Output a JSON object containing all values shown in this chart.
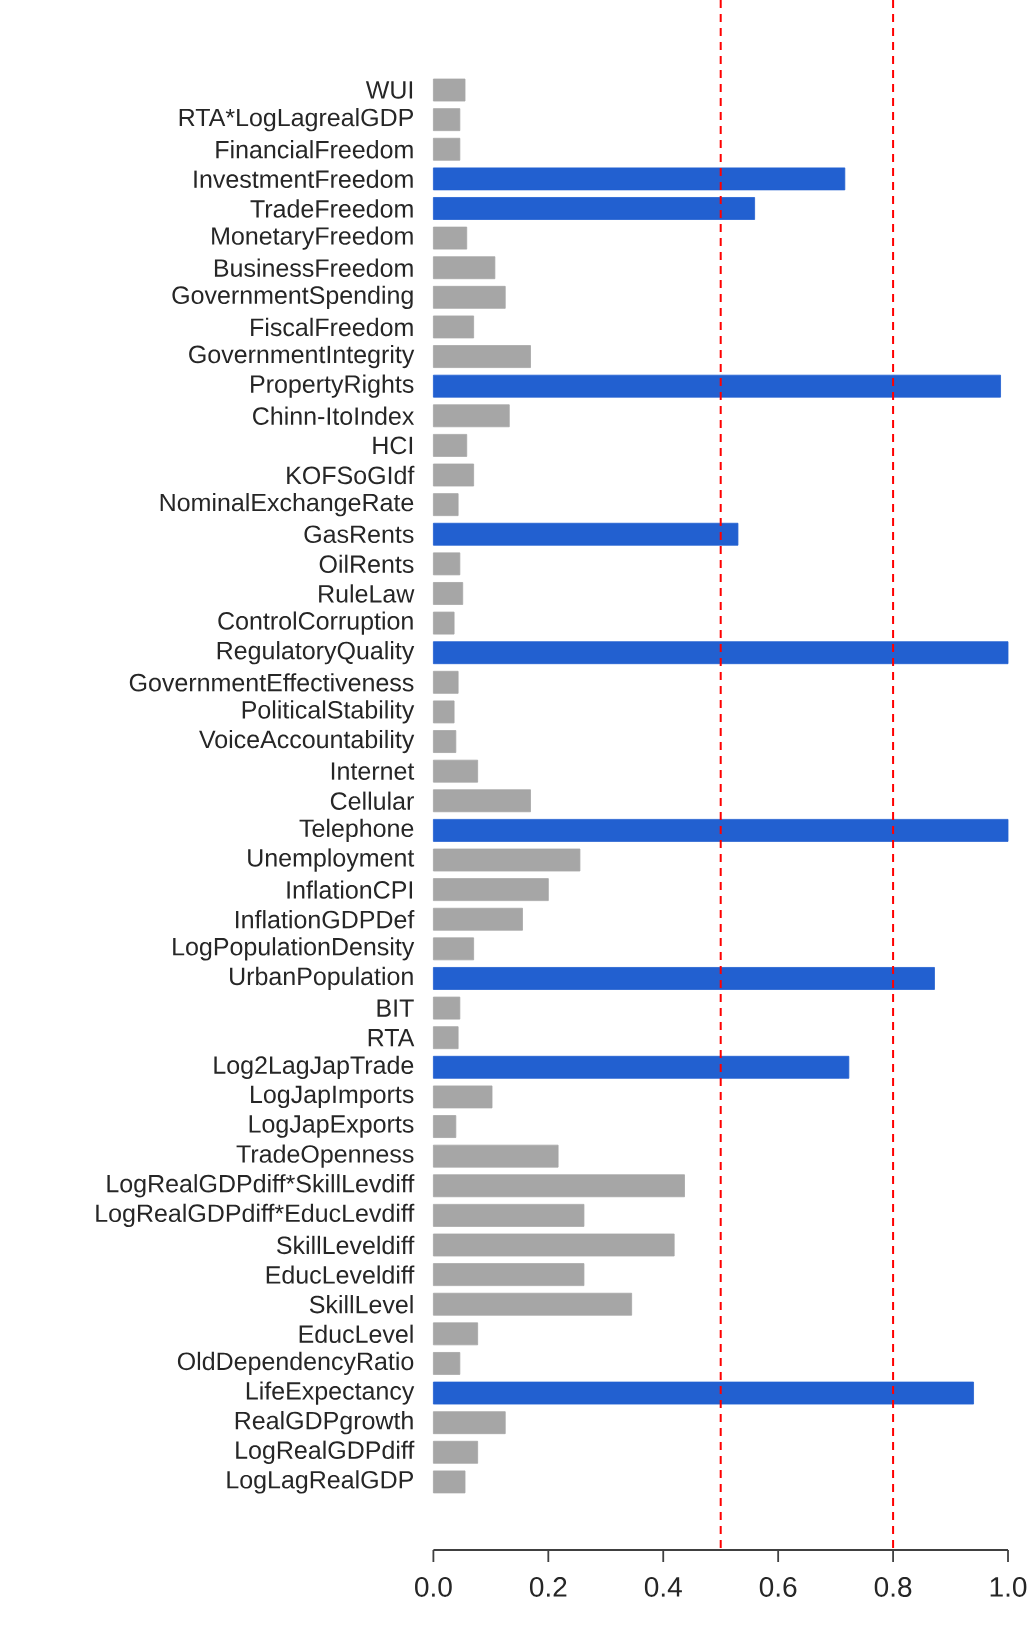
{
  "chart_data": {
    "type": "bar",
    "orientation": "horizontal",
    "categories": [
      "WUI",
      "RTA*LogLagrealGDP",
      "FinancialFreedom",
      "InvestmentFreedom",
      "TradeFreedom",
      "MonetaryFreedom",
      "BusinessFreedom",
      "GovernmentSpending",
      "FiscalFreedom",
      "GovernmentIntegrity",
      "PropertyRights",
      "Chinn-ItoIndex",
      "HCI",
      "KOFSoGIdf",
      "NominalExchangeRate",
      "GasRents",
      "OilRents",
      "RuleLaw",
      "ControlCorruption",
      "RegulatoryQuality",
      "GovernmentEffectiveness",
      "PoliticalStability",
      "VoiceAccountability",
      "Internet",
      "Cellular",
      "Telephone",
      "Unemployment",
      "InflationCPI",
      "InflationGDPDef",
      "LogPopulationDensity",
      "UrbanPopulation",
      "BIT",
      "RTA",
      "Log2LagJapTrade",
      "LogJapImports",
      "LogJapExports",
      "TradeOpenness",
      "LogRealGDPdiff*SkillLevdiff",
      "LogRealGDPdiff*EducLevdiff",
      "SkillLeveldiff",
      "EducLeveldiff",
      "SkillLevel",
      "EducLevel",
      "OldDependencyRatio",
      "LifeExpectancy",
      "RealGDPgrowth",
      "LogRealGDPdiff",
      "LogLagRealGDP"
    ],
    "values": [
      0.055,
      0.046,
      0.046,
      0.716,
      0.559,
      0.058,
      0.107,
      0.125,
      0.07,
      0.169,
      0.987,
      0.132,
      0.058,
      0.07,
      0.043,
      0.53,
      0.046,
      0.051,
      0.036,
      1.0,
      0.043,
      0.036,
      0.039,
      0.077,
      0.169,
      1.0,
      0.255,
      0.2,
      0.155,
      0.07,
      0.872,
      0.046,
      0.043,
      0.723,
      0.102,
      0.039,
      0.217,
      0.437,
      0.262,
      0.419,
      0.262,
      0.345,
      0.077,
      0.046,
      0.94,
      0.125,
      0.077,
      0.055
    ],
    "colors": [
      "#a6a6a6",
      "#a6a6a6",
      "#a6a6a6",
      "#2260d0",
      "#2260d0",
      "#a6a6a6",
      "#a6a6a6",
      "#a6a6a6",
      "#a6a6a6",
      "#a6a6a6",
      "#2260d0",
      "#a6a6a6",
      "#a6a6a6",
      "#a6a6a6",
      "#a6a6a6",
      "#2260d0",
      "#a6a6a6",
      "#a6a6a6",
      "#a6a6a6",
      "#2260d0",
      "#a6a6a6",
      "#a6a6a6",
      "#a6a6a6",
      "#a6a6a6",
      "#a6a6a6",
      "#2260d0",
      "#a6a6a6",
      "#a6a6a6",
      "#a6a6a6",
      "#a6a6a6",
      "#2260d0",
      "#a6a6a6",
      "#a6a6a6",
      "#2260d0",
      "#a6a6a6",
      "#a6a6a6",
      "#a6a6a6",
      "#a6a6a6",
      "#a6a6a6",
      "#a6a6a6",
      "#a6a6a6",
      "#a6a6a6",
      "#a6a6a6",
      "#a6a6a6",
      "#2260d0",
      "#a6a6a6",
      "#a6a6a6",
      "#a6a6a6"
    ],
    "xlim": [
      0,
      1
    ],
    "xticks": [
      {
        "value": 0,
        "label": "0.0"
      },
      {
        "value": 0.2,
        "label": "0.2"
      },
      {
        "value": 0.4,
        "label": "0.4"
      },
      {
        "value": 0.6,
        "label": "0.6"
      },
      {
        "value": 0.8,
        "label": "0.8"
      },
      {
        "value": 1,
        "label": "1.0"
      }
    ],
    "ref_lines": [
      {
        "axis": "x",
        "value": 0.5,
        "color": "#ff0000",
        "line_style": "dashed"
      },
      {
        "axis": "x",
        "value": 0.8,
        "color": "#ff0000",
        "line_style": "dashed"
      }
    ]
  }
}
